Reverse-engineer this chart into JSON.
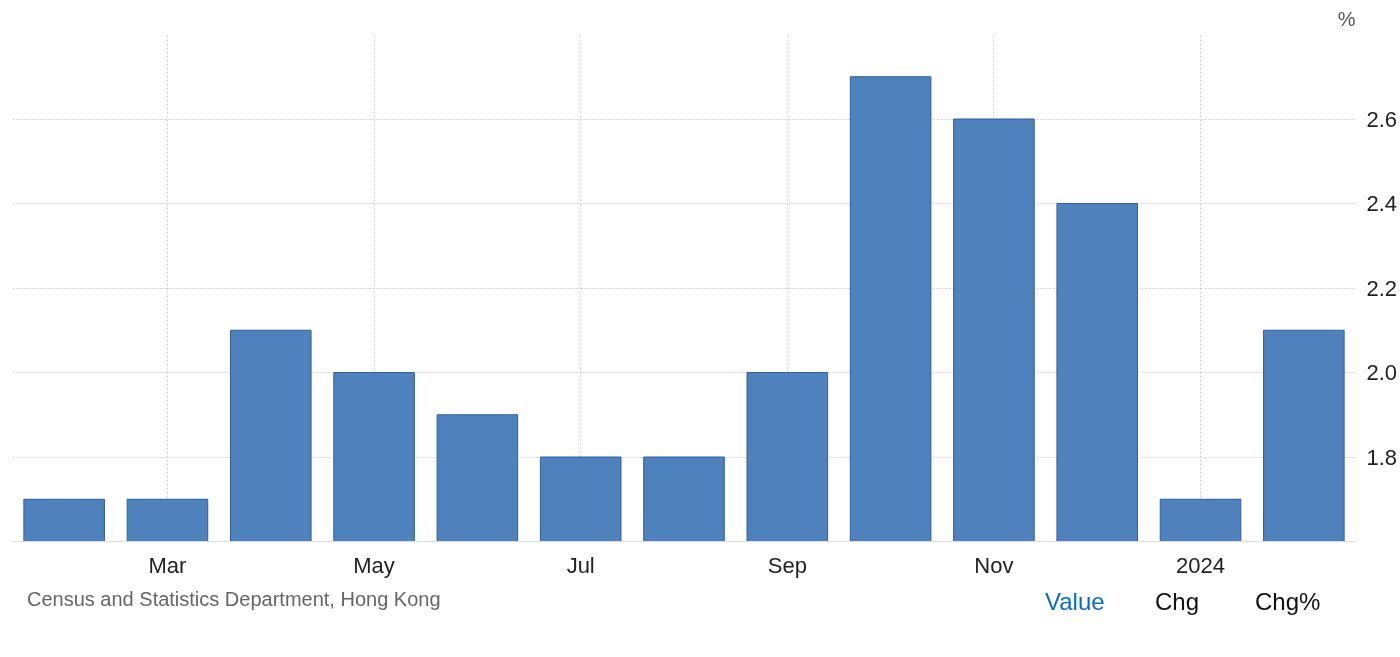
{
  "chart_data": {
    "type": "bar",
    "ylabel": "%",
    "categories": [
      null,
      "Mar",
      null,
      "May",
      null,
      "Jul",
      null,
      "Sep",
      null,
      "Nov",
      null,
      "2024",
      null
    ],
    "series": [
      {
        "color": "#4f81bd",
        "values": [
          1.7,
          1.7,
          2.1,
          2.0,
          1.9,
          1.8,
          1.8,
          2.0,
          2.7,
          2.6,
          2.4,
          1.7,
          2.1
        ]
      }
    ],
    "ylim": [
      1.6,
      2.8
    ],
    "yticks": [
      1.8,
      {
        "value": 2.0,
        "label": "2.0"
      },
      2.2,
      2.4,
      2.6
    ],
    "grid": true,
    "annotations": [
      "Census and Statistics Department, Hong Kong",
      "Value",
      "Chg",
      "Chg%"
    ]
  }
}
